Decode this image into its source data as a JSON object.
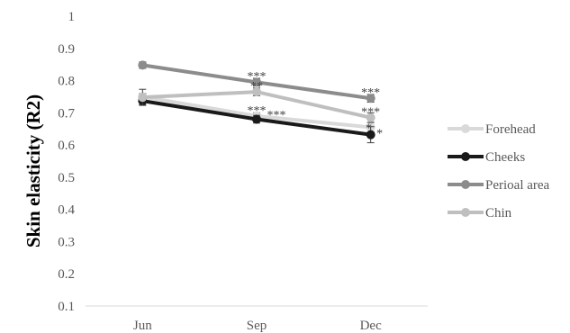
{
  "chart_data": {
    "type": "line",
    "ylabel": "Skin elasticity (R2)",
    "xlabel": "",
    "categories": [
      "Jun",
      "Sep",
      "Dec"
    ],
    "ylim": [
      0.1,
      1
    ],
    "yticks": [
      "0.1",
      "0.2",
      "0.3",
      "0.4",
      "0.5",
      "0.6",
      "0.7",
      "0.8",
      "0.9",
      "1"
    ],
    "grid": false,
    "legend_position": "right",
    "series": [
      {
        "name": "Forehead",
        "values": [
          0.75,
          0.69,
          0.655
        ],
        "errors": [
          0.01,
          0.01,
          0.015
        ],
        "color": "#d9d9d9"
      },
      {
        "name": "Cheeks",
        "values": [
          0.737,
          0.68,
          0.632
        ],
        "errors": [
          0.012,
          0.012,
          0.025
        ],
        "color": "#1a1a1a"
      },
      {
        "name": "Perioal area",
        "values": [
          0.848,
          0.795,
          0.745
        ],
        "errors": [
          0.01,
          0.012,
          0.012
        ],
        "color": "#8c8c8c"
      },
      {
        "name": "Chin",
        "values": [
          0.748,
          0.765,
          0.685
        ],
        "errors": [
          0.025,
          0.012,
          0.015
        ],
        "color": "#bfbfbf"
      }
    ],
    "annotations": [
      {
        "text": "***",
        "category": "Sep",
        "y": 0.815
      },
      {
        "text": "**",
        "category": "Sep",
        "y": 0.785
      },
      {
        "text": "***",
        "category": "Sep",
        "y": 0.71
      },
      {
        "text": "***",
        "category": "Sep",
        "y": 0.695
      },
      {
        "text": "***",
        "category": "Dec",
        "y": 0.765
      },
      {
        "text": "***",
        "category": "Dec",
        "y": 0.705
      },
      {
        "text": "*",
        "category": "Dec",
        "y": 0.655
      },
      {
        "text": "*",
        "category": "Dec",
        "y": 0.638
      }
    ]
  }
}
